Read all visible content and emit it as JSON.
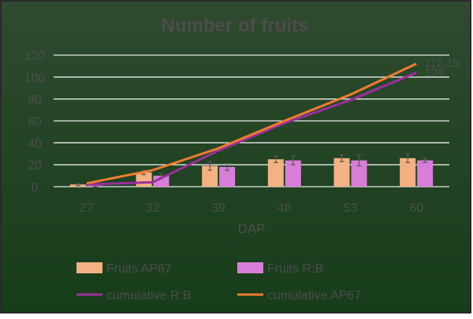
{
  "chart_data": {
    "type": "bar",
    "title": "Number of fruits",
    "xlabel": "DAP",
    "ylabel": "",
    "categories": [
      "27",
      "32",
      "39",
      "46",
      "53",
      "60"
    ],
    "ylim": [
      0,
      120
    ],
    "yticks": [
      0,
      20,
      40,
      60,
      80,
      100,
      120
    ],
    "grid": true,
    "legend_position": "bottom",
    "series": [
      {
        "name": "Fruits AP67",
        "type": "bar",
        "color": "#f4b183",
        "values": [
          2,
          13,
          19,
          25,
          26,
          26
        ],
        "errors": [
          1,
          2,
          4,
          3,
          3,
          4
        ]
      },
      {
        "name": "Fruits R:B",
        "type": "bar",
        "color": "#d97ed8",
        "values": [
          1,
          10,
          18,
          24,
          24,
          24
        ],
        "errors": [
          1,
          2,
          3,
          4,
          5,
          2
        ]
      },
      {
        "name": "cumulative R:B",
        "type": "line",
        "color": "#9b2f9b",
        "values": [
          2,
          4,
          33,
          58,
          79,
          104
        ]
      },
      {
        "name": "cumulative AP67",
        "type": "line",
        "color": "#ee7d31",
        "values": [
          3,
          15,
          35,
          60,
          84,
          112.19
        ]
      }
    ],
    "data_labels": [
      {
        "series": "cumulative AP67",
        "index": 5,
        "text": "112.19"
      },
      {
        "series": "cumulative R:B",
        "index": 5,
        "text": "104"
      }
    ]
  },
  "colors": {
    "background_top": "#2f4a2f",
    "background_bottom": "#173d1a",
    "border": "#2a2a2a",
    "gridline": "#e9e9e9",
    "text": "#4d4d4d",
    "error_bar": "#595959"
  }
}
